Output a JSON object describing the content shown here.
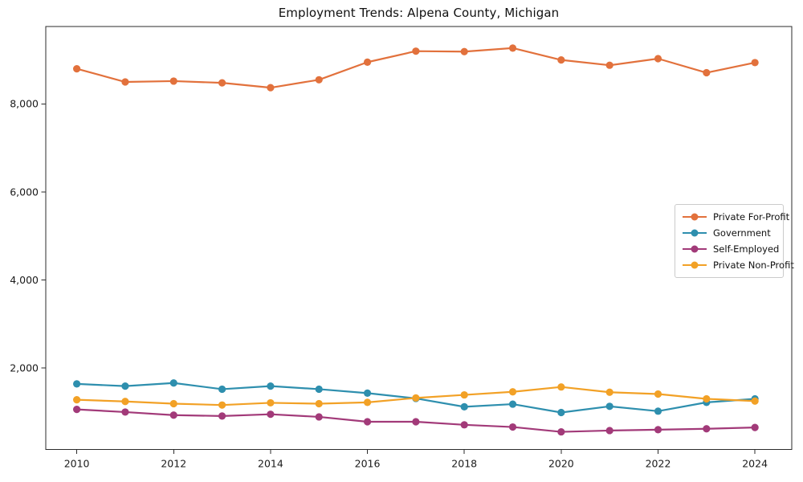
{
  "figure": {
    "title": "Employment Trends: Alpena County, Michigan"
  },
  "chart_data": {
    "type": "line",
    "title": "Employment Trends: Alpena County, Michigan",
    "xlabel": "",
    "ylabel": "",
    "x": [
      2010,
      2011,
      2012,
      2013,
      2014,
      2015,
      2016,
      2017,
      2018,
      2019,
      2020,
      2021,
      2022,
      2023,
      2024
    ],
    "series": [
      {
        "name": "Private For-Profit",
        "color": "#E2713C",
        "values": [
          8800,
          8500,
          8520,
          8480,
          8370,
          8550,
          8950,
          9200,
          9190,
          9270,
          9000,
          8880,
          9030,
          8710,
          8940
        ]
      },
      {
        "name": "Government",
        "color": "#2E8FAE",
        "values": [
          1640,
          1590,
          1660,
          1520,
          1590,
          1520,
          1430,
          1310,
          1120,
          1180,
          990,
          1130,
          1020,
          1220,
          1300
        ]
      },
      {
        "name": "Self-Employed",
        "color": "#A23A79",
        "values": [
          1060,
          1000,
          930,
          910,
          950,
          890,
          780,
          780,
          710,
          660,
          550,
          580,
          600,
          620,
          650
        ]
      },
      {
        "name": "Private Non-Profit",
        "color": "#F2A126",
        "values": [
          1280,
          1240,
          1190,
          1160,
          1210,
          1190,
          1220,
          1320,
          1390,
          1460,
          1570,
          1450,
          1410,
          1300,
          1250
        ]
      }
    ],
    "xlim": [
      2009.36,
      2024.76
    ],
    "ylim": [
      150,
      9760
    ],
    "x_ticks": {
      "values": [
        2010,
        2012,
        2014,
        2016,
        2018,
        2020,
        2022,
        2024
      ],
      "labels": [
        "2010",
        "2012",
        "2014",
        "2016",
        "2018",
        "2020",
        "2022",
        "2024"
      ]
    },
    "y_ticks": {
      "values": [
        2000,
        4000,
        6000,
        8000
      ],
      "labels": [
        "2,000",
        "4,000",
        "6,000",
        "8,000"
      ]
    },
    "grid": false,
    "legend_position": "center-right",
    "marker": "circle",
    "line_width": 2.2,
    "marker_radius": 4.6,
    "axis_color": "#2b2b2b",
    "tick_label_color": "#1a1a1a"
  }
}
